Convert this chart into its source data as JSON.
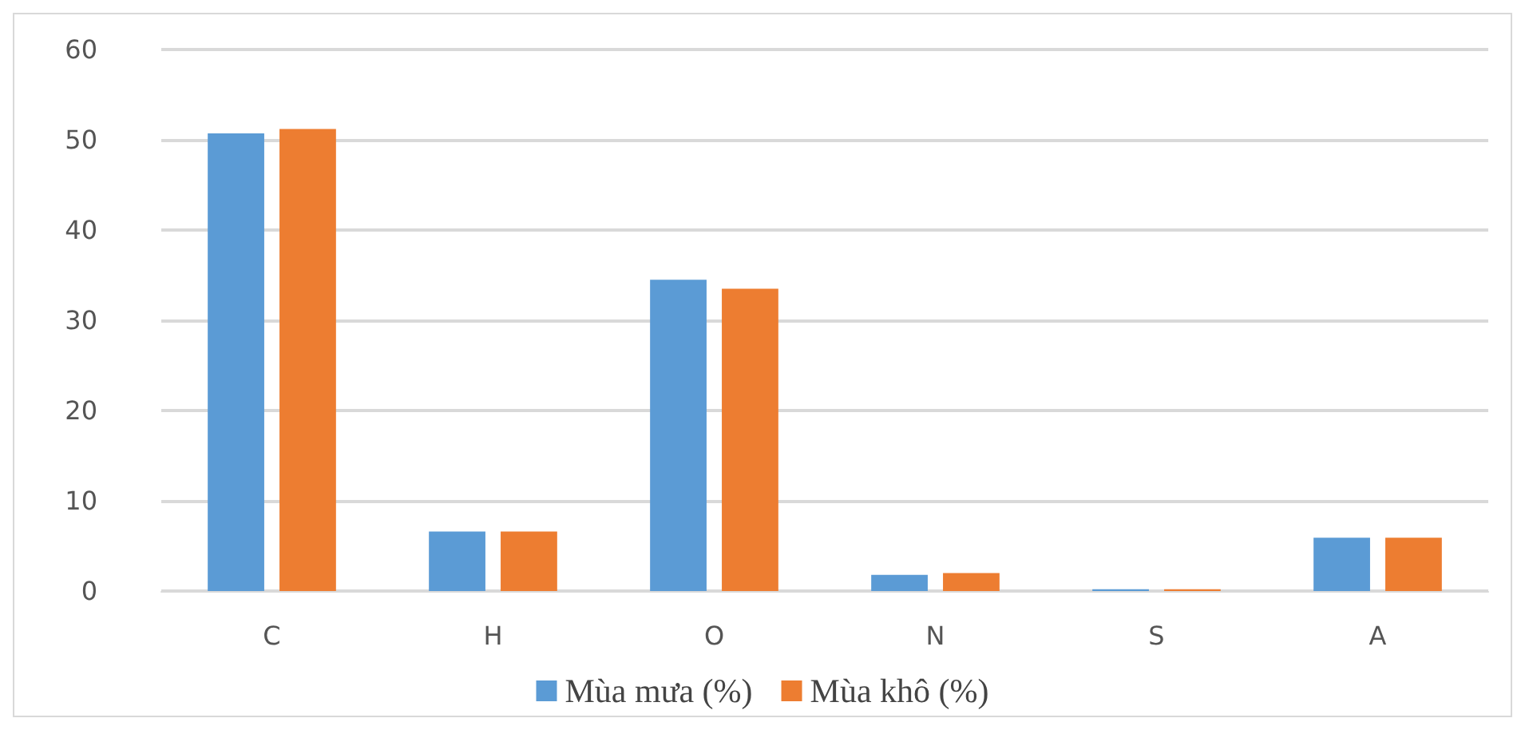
{
  "chart_data": {
    "type": "bar",
    "categories": [
      "C",
      "H",
      "O",
      "N",
      "S",
      "A"
    ],
    "series": [
      {
        "name": "Mùa mưa (%)",
        "color": "#5b9bd5",
        "values": [
          50.7,
          6.6,
          34.5,
          1.8,
          0.2,
          5.9
        ]
      },
      {
        "name": "Mùa khô (%)",
        "color": "#ed7d31",
        "values": [
          51.2,
          6.6,
          33.5,
          2.0,
          0.2,
          5.9
        ]
      }
    ],
    "ylim": [
      0,
      60
    ],
    "yticks": [
      0,
      10,
      20,
      30,
      40,
      50,
      60
    ],
    "grid": "y",
    "legend": "bottom"
  }
}
